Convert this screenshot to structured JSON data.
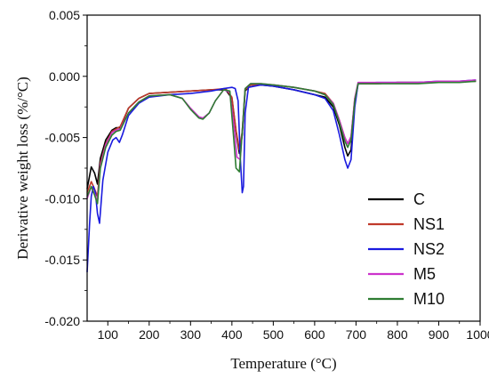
{
  "chart_data": {
    "type": "line",
    "title": "",
    "xlabel": "Temperature (°C)",
    "ylabel": "Derivative weight loss (%/°C)",
    "xlim": [
      50,
      1000
    ],
    "ylim": [
      -0.02,
      0.005
    ],
    "x_ticks": [
      {
        "value": 100,
        "label": "100"
      },
      {
        "value": 200,
        "label": "200"
      },
      {
        "value": 300,
        "label": "300"
      },
      {
        "value": 400,
        "label": "400"
      },
      {
        "value": 500,
        "label": "500"
      },
      {
        "value": 600,
        "label": "600"
      },
      {
        "value": 700,
        "label": "700"
      },
      {
        "value": 800,
        "label": "800"
      },
      {
        "value": 900,
        "label": "900"
      },
      {
        "value": 1000,
        "label": "1000"
      }
    ],
    "y_ticks": [
      {
        "value": 0.005,
        "label": "0.005"
      },
      {
        "value": 0.0,
        "label": "0.000"
      },
      {
        "value": -0.005,
        "label": "-0.005"
      },
      {
        "value": -0.01,
        "label": "-0.010"
      },
      {
        "value": -0.015,
        "label": "-0.015"
      },
      {
        "value": -0.02,
        "label": "-0.020"
      }
    ],
    "grid": false,
    "legend_position": "bottom-right",
    "series": [
      {
        "name": "C",
        "color": "#000000",
        "points": [
          [
            50,
            -0.0092
          ],
          [
            60,
            -0.0074
          ],
          [
            68,
            -0.0079
          ],
          [
            75,
            -0.0088
          ],
          [
            82,
            -0.0067
          ],
          [
            95,
            -0.0052
          ],
          [
            110,
            -0.0044
          ],
          [
            120,
            -0.0042
          ],
          [
            130,
            -0.0042
          ],
          [
            150,
            -0.0026
          ],
          [
            175,
            -0.0018
          ],
          [
            200,
            -0.0014
          ],
          [
            250,
            -0.0013
          ],
          [
            300,
            -0.0012
          ],
          [
            350,
            -0.0011
          ],
          [
            385,
            -0.0011
          ],
          [
            400,
            -0.0018
          ],
          [
            410,
            -0.0045
          ],
          [
            418,
            -0.0063
          ],
          [
            425,
            -0.0048
          ],
          [
            432,
            -0.0012
          ],
          [
            445,
            -0.0007
          ],
          [
            470,
            -0.0007
          ],
          [
            500,
            -0.0008
          ],
          [
            550,
            -0.0011
          ],
          [
            600,
            -0.0015
          ],
          [
            625,
            -0.0017
          ],
          [
            645,
            -0.0025
          ],
          [
            660,
            -0.004
          ],
          [
            673,
            -0.0058
          ],
          [
            680,
            -0.0065
          ],
          [
            688,
            -0.006
          ],
          [
            697,
            -0.0022
          ],
          [
            705,
            -0.0006
          ],
          [
            750,
            -0.0006
          ],
          [
            800,
            -0.0005
          ],
          [
            850,
            -0.0005
          ],
          [
            900,
            -0.0005
          ],
          [
            950,
            -0.0004
          ],
          [
            990,
            -0.0004
          ]
        ]
      },
      {
        "name": "NS1",
        "color": "#c0392b",
        "points": [
          [
            50,
            -0.0095
          ],
          [
            60,
            -0.0086
          ],
          [
            68,
            -0.0092
          ],
          [
            75,
            -0.0098
          ],
          [
            82,
            -0.0071
          ],
          [
            95,
            -0.0055
          ],
          [
            110,
            -0.0045
          ],
          [
            120,
            -0.0043
          ],
          [
            130,
            -0.0041
          ],
          [
            150,
            -0.0026
          ],
          [
            175,
            -0.0018
          ],
          [
            200,
            -0.0014
          ],
          [
            250,
            -0.0013
          ],
          [
            300,
            -0.0012
          ],
          [
            350,
            -0.0011
          ],
          [
            385,
            -0.001
          ],
          [
            400,
            -0.0017
          ],
          [
            410,
            -0.0044
          ],
          [
            418,
            -0.006
          ],
          [
            425,
            -0.0045
          ],
          [
            432,
            -0.0011
          ],
          [
            445,
            -0.0007
          ],
          [
            470,
            -0.0007
          ],
          [
            500,
            -0.0007
          ],
          [
            550,
            -0.0009
          ],
          [
            600,
            -0.0012
          ],
          [
            625,
            -0.0014
          ],
          [
            645,
            -0.0022
          ],
          [
            660,
            -0.0036
          ],
          [
            673,
            -0.005
          ],
          [
            680,
            -0.0055
          ],
          [
            688,
            -0.005
          ],
          [
            697,
            -0.0018
          ],
          [
            705,
            -0.0006
          ],
          [
            750,
            -0.0006
          ],
          [
            800,
            -0.0005
          ],
          [
            850,
            -0.0005
          ],
          [
            900,
            -0.0005
          ],
          [
            950,
            -0.0004
          ],
          [
            990,
            -0.0004
          ]
        ]
      },
      {
        "name": "NS2",
        "color": "#1a1adf",
        "points": [
          [
            50,
            -0.016
          ],
          [
            56,
            -0.012
          ],
          [
            60,
            -0.0098
          ],
          [
            65,
            -0.009
          ],
          [
            70,
            -0.0095
          ],
          [
            75,
            -0.0112
          ],
          [
            80,
            -0.012
          ],
          [
            88,
            -0.0085
          ],
          [
            100,
            -0.0062
          ],
          [
            112,
            -0.0052
          ],
          [
            120,
            -0.005
          ],
          [
            128,
            -0.0054
          ],
          [
            135,
            -0.0048
          ],
          [
            150,
            -0.0032
          ],
          [
            175,
            -0.0022
          ],
          [
            200,
            -0.0017
          ],
          [
            250,
            -0.0015
          ],
          [
            300,
            -0.0014
          ],
          [
            350,
            -0.0012
          ],
          [
            380,
            -0.001
          ],
          [
            400,
            -0.0009
          ],
          [
            408,
            -0.001
          ],
          [
            415,
            -0.002
          ],
          [
            420,
            -0.0065
          ],
          [
            425,
            -0.0095
          ],
          [
            428,
            -0.009
          ],
          [
            432,
            -0.003
          ],
          [
            440,
            -0.0009
          ],
          [
            470,
            -0.0007
          ],
          [
            500,
            -0.0008
          ],
          [
            550,
            -0.0011
          ],
          [
            600,
            -0.0015
          ],
          [
            625,
            -0.0018
          ],
          [
            645,
            -0.0028
          ],
          [
            660,
            -0.0048
          ],
          [
            673,
            -0.0068
          ],
          [
            680,
            -0.0075
          ],
          [
            688,
            -0.0068
          ],
          [
            697,
            -0.0025
          ],
          [
            705,
            -0.0006
          ],
          [
            750,
            -0.0005
          ],
          [
            800,
            -0.0005
          ],
          [
            850,
            -0.0005
          ],
          [
            900,
            -0.0004
          ],
          [
            950,
            -0.0004
          ],
          [
            990,
            -0.0003
          ]
        ]
      },
      {
        "name": "M5",
        "color": "#cc33cc",
        "points": [
          [
            50,
            -0.01
          ],
          [
            60,
            -0.009
          ],
          [
            68,
            -0.0096
          ],
          [
            75,
            -0.0102
          ],
          [
            82,
            -0.0073
          ],
          [
            95,
            -0.0056
          ],
          [
            110,
            -0.0046
          ],
          [
            120,
            -0.0044
          ],
          [
            130,
            -0.0043
          ],
          [
            150,
            -0.003
          ],
          [
            175,
            -0.0021
          ],
          [
            200,
            -0.0016
          ],
          [
            250,
            -0.0015
          ],
          [
            280,
            -0.0018
          ],
          [
            300,
            -0.0026
          ],
          [
            320,
            -0.0033
          ],
          [
            330,
            -0.0034
          ],
          [
            345,
            -0.003
          ],
          [
            360,
            -0.002
          ],
          [
            380,
            -0.0011
          ],
          [
            395,
            -0.0013
          ],
          [
            405,
            -0.004
          ],
          [
            412,
            -0.0066
          ],
          [
            420,
            -0.0068
          ],
          [
            426,
            -0.004
          ],
          [
            432,
            -0.001
          ],
          [
            445,
            -0.0006
          ],
          [
            470,
            -0.0006
          ],
          [
            500,
            -0.0007
          ],
          [
            550,
            -0.0009
          ],
          [
            600,
            -0.0012
          ],
          [
            625,
            -0.0015
          ],
          [
            645,
            -0.0022
          ],
          [
            660,
            -0.0036
          ],
          [
            673,
            -0.005
          ],
          [
            680,
            -0.0055
          ],
          [
            688,
            -0.0049
          ],
          [
            697,
            -0.0018
          ],
          [
            705,
            -0.0005
          ],
          [
            750,
            -0.0005
          ],
          [
            800,
            -0.0005
          ],
          [
            850,
            -0.0005
          ],
          [
            900,
            -0.0004
          ],
          [
            950,
            -0.0004
          ],
          [
            990,
            -0.0003
          ]
        ]
      },
      {
        "name": "M10",
        "color": "#2e7d32",
        "points": [
          [
            50,
            -0.0098
          ],
          [
            60,
            -0.009
          ],
          [
            68,
            -0.0097
          ],
          [
            75,
            -0.0104
          ],
          [
            82,
            -0.0075
          ],
          [
            95,
            -0.0058
          ],
          [
            110,
            -0.0048
          ],
          [
            120,
            -0.0045
          ],
          [
            130,
            -0.0044
          ],
          [
            150,
            -0.003
          ],
          [
            175,
            -0.0021
          ],
          [
            200,
            -0.0016
          ],
          [
            250,
            -0.0015
          ],
          [
            280,
            -0.0018
          ],
          [
            300,
            -0.0027
          ],
          [
            320,
            -0.0034
          ],
          [
            330,
            -0.0035
          ],
          [
            345,
            -0.003
          ],
          [
            360,
            -0.002
          ],
          [
            380,
            -0.0011
          ],
          [
            395,
            -0.0012
          ],
          [
            403,
            -0.0045
          ],
          [
            410,
            -0.0075
          ],
          [
            418,
            -0.0078
          ],
          [
            425,
            -0.0045
          ],
          [
            432,
            -0.001
          ],
          [
            445,
            -0.0006
          ],
          [
            470,
            -0.0006
          ],
          [
            500,
            -0.0007
          ],
          [
            550,
            -0.0009
          ],
          [
            600,
            -0.0012
          ],
          [
            625,
            -0.0015
          ],
          [
            645,
            -0.0023
          ],
          [
            660,
            -0.0038
          ],
          [
            673,
            -0.0053
          ],
          [
            680,
            -0.0058
          ],
          [
            688,
            -0.0052
          ],
          [
            697,
            -0.002
          ],
          [
            705,
            -0.0006
          ],
          [
            750,
            -0.0006
          ],
          [
            800,
            -0.0006
          ],
          [
            850,
            -0.0006
          ],
          [
            900,
            -0.0005
          ],
          [
            950,
            -0.0005
          ],
          [
            990,
            -0.0004
          ]
        ]
      }
    ]
  }
}
